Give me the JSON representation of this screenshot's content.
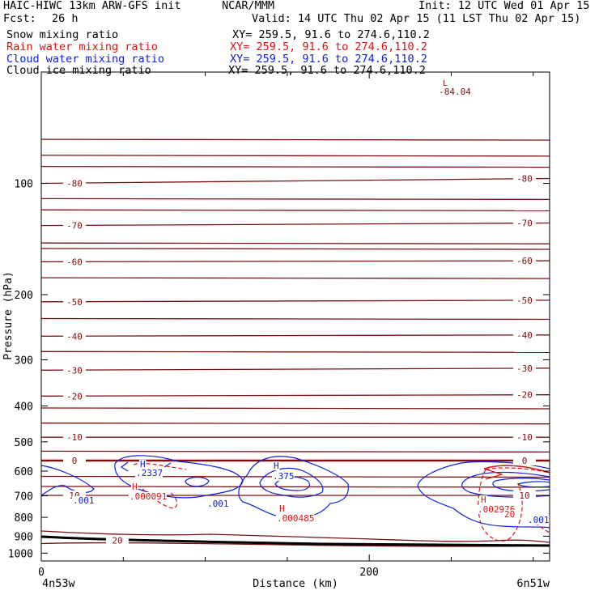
{
  "header": {
    "title_left": "HAIC-HIWC 13km ARW-GFS init",
    "org": "NCAR/MMM",
    "init": "Init: 12 UTC Wed 01 Apr 15",
    "fcst_label": "Fcst:",
    "fcst_value": "26 h",
    "valid": "Valid: 14 UTC Thu 02 Apr 15 (11 LST Thu 02 Apr 15)"
  },
  "fields": [
    {
      "label": "Snow mixing ratio",
      "xy": "XY= 259.5, 91.6 to 274.6,110.2",
      "color": "#000000"
    },
    {
      "label": "Rain water mixing ratio",
      "xy": "XY= 259.5, 91.6 to 274.6,110.2",
      "color": "#e01010"
    },
    {
      "label": "Cloud water mixing ratio",
      "xy": "XY= 259.5, 91.6 to 274.6,110.2",
      "color": "#1020e0"
    },
    {
      "label": "Cloud ice mixing ratio",
      "xy": "XY= 259.5, 91.6 to 274.6,110.2",
      "color": "#000000"
    }
  ],
  "chart_data": {
    "type": "line",
    "xlabel": "Distance (km)",
    "ylabel": "Pressure (hPa)",
    "xlim": [
      0,
      310
    ],
    "ylim": [
      1050,
      50
    ],
    "y_scale": "log",
    "yticks": [
      100,
      200,
      300,
      400,
      500,
      600,
      700,
      800,
      900,
      1000
    ],
    "xticks": [
      0,
      200
    ],
    "x_end_labels": {
      "left": "4n53w",
      "right": "6n51w"
    },
    "colors": {
      "temperature": "#7a1010",
      "rain": "#e01010",
      "cloud_water": "#1020e0",
      "ground": "#000000"
    },
    "temperature_contours": [
      {
        "label": "-80",
        "p_left": 100,
        "p_right": 97
      },
      {
        "label": "-70",
        "p_left": 130,
        "p_right": 128
      },
      {
        "label": "-60",
        "p_left": 163,
        "p_right": 162
      },
      {
        "label": "-50",
        "p_left": 209,
        "p_right": 207
      },
      {
        "label": "-40",
        "p_left": 259,
        "p_right": 257
      },
      {
        "label": "-30",
        "p_left": 320,
        "p_right": 316
      },
      {
        "label": "-20",
        "p_left": 376,
        "p_right": 373
      },
      {
        "label": "-10",
        "p_left": 486,
        "p_right": 486
      },
      {
        "label": "0",
        "p_left": 562,
        "p_right": 562
      },
      {
        "label": "10",
        "p_left": 698,
        "p_right": 698
      },
      {
        "label": "20",
        "p_left": 942,
        "p_right": 956
      }
    ],
    "unlabeled_isotherm_pressures": [
      76,
      84,
      90,
      110,
      118,
      145,
      150,
      180,
      232,
      285,
      405,
      445,
      530,
      620,
      660
    ],
    "annotations": [
      {
        "text": "L",
        "color": "temperature"
      },
      {
        "text": "-84.04",
        "color": "temperature"
      },
      {
        "text": "H",
        "color": "cloud_water"
      },
      {
        "text": ".2337",
        "color": "cloud_water"
      },
      {
        "text": "H",
        "color": "cloud_water"
      },
      {
        "text": ".375",
        "color": "cloud_water"
      },
      {
        "text": ".001",
        "color": "cloud_water"
      },
      {
        "text": ".001",
        "color": "cloud_water"
      },
      {
        "text": ".001",
        "color": "cloud_water"
      },
      {
        "text": "H",
        "color": "rain"
      },
      {
        "text": ".000091",
        "color": "rain"
      },
      {
        "text": "H",
        "color": "rain"
      },
      {
        "text": ".000485",
        "color": "rain"
      },
      {
        "text": "H",
        "color": "rain"
      },
      {
        "text": ".002976",
        "color": "rain"
      },
      {
        "text": "20",
        "color": "rain"
      }
    ]
  }
}
